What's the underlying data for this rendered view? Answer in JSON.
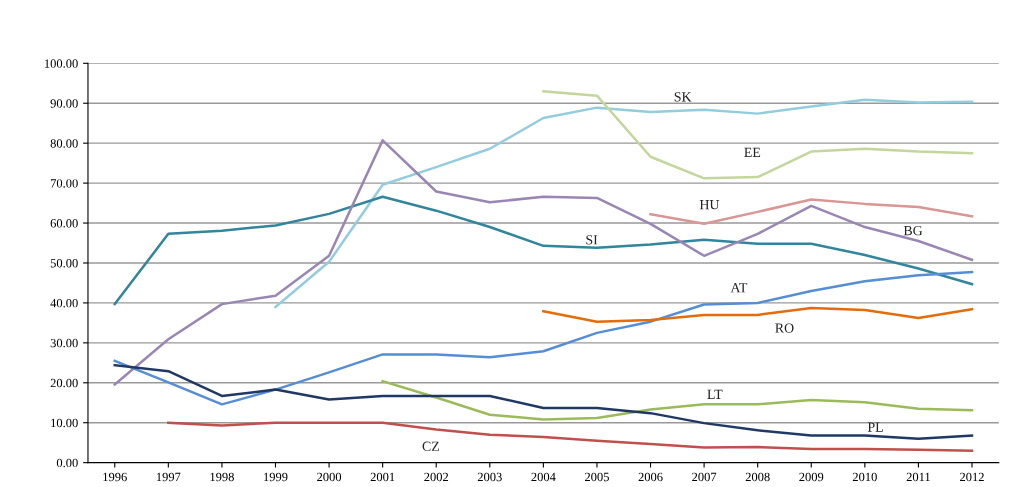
{
  "chart_data": {
    "type": "line",
    "categories": [
      "1996",
      "1997",
      "1998",
      "1999",
      "2000",
      "2001",
      "2002",
      "2003",
      "2004",
      "2005",
      "2006",
      "2007",
      "2008",
      "2009",
      "2010",
      "2011",
      "2012"
    ],
    "ylim": [
      0,
      100
    ],
    "yticks": [
      {
        "value": 0,
        "label": "0.00"
      },
      {
        "value": 10,
        "label": "10.00"
      },
      {
        "value": 20,
        "label": "20.00"
      },
      {
        "value": 30,
        "label": "30.00"
      },
      {
        "value": 40,
        "label": "40.00"
      },
      {
        "value": 50,
        "label": "50.00"
      },
      {
        "value": 60,
        "label": "60.00"
      },
      {
        "value": 70,
        "label": "70.00"
      },
      {
        "value": 80,
        "label": "80.00"
      },
      {
        "value": 90,
        "label": "90.00"
      },
      {
        "value": 100,
        "label": "100.00"
      }
    ],
    "grid": "y",
    "legend": false,
    "marker": "none",
    "line_style": "solid",
    "series": [
      {
        "name": "SK",
        "color": "#93cddd",
        "values": [
          null,
          null,
          null,
          39,
          50.3,
          69.6,
          74,
          78.6,
          86.3,
          88.9,
          87.8,
          88.4,
          87.4,
          89.2,
          90.9,
          90.2,
          90.4
        ]
      },
      {
        "name": "EE",
        "color": "#c3d69b",
        "values": [
          null,
          null,
          null,
          null,
          null,
          null,
          null,
          null,
          93,
          91.9,
          76.6,
          71.2,
          71.5,
          77.9,
          78.6,
          77.9,
          77.5
        ]
      },
      {
        "name": "HU",
        "color": "#d99694",
        "values": [
          null,
          null,
          null,
          null,
          null,
          null,
          null,
          null,
          null,
          null,
          62.2,
          59.8,
          62.8,
          65.9,
          64.8,
          64,
          61.7
        ]
      },
      {
        "name": "SI",
        "color": "#31859c",
        "values": [
          39.7,
          57.3,
          58.1,
          59.4,
          62.3,
          66.6,
          63.1,
          59,
          54.3,
          53.8,
          54.6,
          55.8,
          54.8,
          54.8,
          52,
          48.6,
          44.7
        ]
      },
      {
        "name": "BG",
        "color": "#9a86b4",
        "values": [
          19.6,
          30.9,
          39.7,
          41.8,
          51.8,
          80.7,
          67.9,
          65.2,
          66.6,
          66.3,
          59.8,
          51.8,
          57.3,
          64.3,
          59,
          55.5,
          50.8
        ]
      },
      {
        "name": "AT",
        "color": "#558ed5",
        "values": [
          25.5,
          20.1,
          14.6,
          18.3,
          22.6,
          27.1,
          27.1,
          26.4,
          27.9,
          32.5,
          35.3,
          39.6,
          40,
          43,
          45.4,
          46.9,
          47.7
        ]
      },
      {
        "name": "RO",
        "color": "#e46c0a",
        "values": [
          null,
          null,
          null,
          null,
          null,
          null,
          null,
          null,
          37.9,
          35.3,
          35.7,
          37,
          37,
          38.7,
          38.2,
          36.2,
          38.4
        ]
      },
      {
        "name": "LT",
        "color": "#9bbb59",
        "values": [
          null,
          null,
          null,
          null,
          null,
          20.4,
          16.3,
          12,
          10.8,
          11.2,
          13.3,
          14.6,
          14.6,
          15.7,
          15.1,
          13.5,
          13.1
        ]
      },
      {
        "name": "PL",
        "color": "#1f3864",
        "values": [
          24.4,
          22.9,
          16.7,
          18.3,
          15.8,
          16.7,
          16.7,
          16.7,
          13.7,
          13.7,
          12.4,
          9.9,
          8.1,
          6.8,
          6.8,
          6,
          6.8
        ]
      },
      {
        "name": "CZ",
        "color": "#c0504d",
        "values": [
          null,
          10,
          9.3,
          10,
          10,
          10,
          8.3,
          7,
          6.4,
          5.5,
          4.7,
          3.8,
          3.9,
          3.4,
          3.4,
          3.2,
          3
        ]
      }
    ]
  }
}
